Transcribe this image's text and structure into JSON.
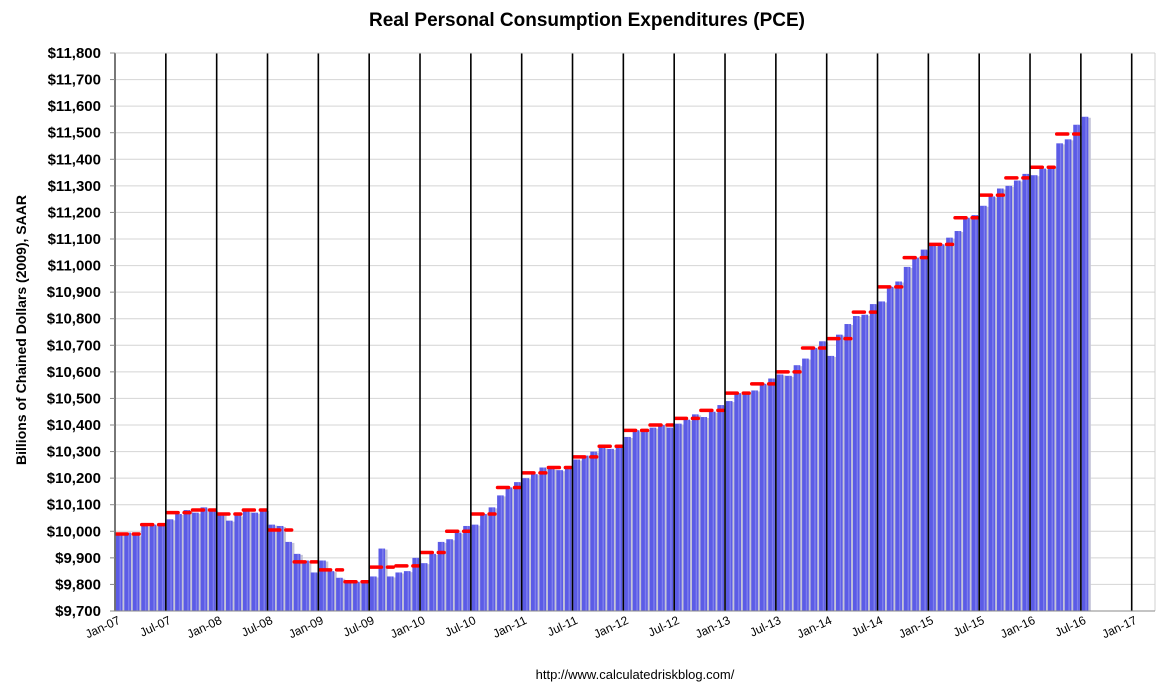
{
  "chart_data": {
    "type": "bar",
    "title": "Real Personal Consumption Expenditures (PCE)",
    "ylabel": "Billions of Chained Dollars (2009), SAAR",
    "xlabel": "",
    "ylim": [
      9700,
      11800
    ],
    "ytick_step": 100,
    "ytick_labels": [
      "$9,700",
      "$9,800",
      "$9,900",
      "$10,000",
      "$10,100",
      "$10,200",
      "$10,300",
      "$10,400",
      "$10,500",
      "$10,600",
      "$10,700",
      "$10,800",
      "$10,900",
      "$11,000",
      "$11,100",
      "$11,200",
      "$11,300",
      "$11,400",
      "$11,500",
      "$11,600",
      "$11,700",
      "$11,800"
    ],
    "xtick_labels": [
      "Jan-07",
      "Jul-07",
      "Jan-08",
      "Jul-08",
      "Jan-09",
      "Jul-09",
      "Jan-10",
      "Jul-10",
      "Jan-11",
      "Jul-11",
      "Jan-12",
      "Jul-12",
      "Jan-13",
      "Jul-13",
      "Jan-14",
      "Jul-14",
      "Jan-15",
      "Jul-15",
      "Jan-16",
      "Jul-16",
      "Jan-17"
    ],
    "grid": "vertical lines at every tick label",
    "legend": "none",
    "series": [
      {
        "kind": "monthly bars",
        "color": "#5b5be6",
        "values": [
          9990,
          9995,
          9985,
          10020,
          10025,
          10020,
          10045,
          10065,
          10080,
          10070,
          10090,
          10080,
          10070,
          10040,
          10060,
          10075,
          10070,
          10080,
          10025,
          10020,
          9960,
          9915,
          9890,
          9845,
          9890,
          9850,
          9825,
          9815,
          9810,
          9805,
          9830,
          9935,
          9830,
          9845,
          9850,
          9900,
          9880,
          9915,
          9960,
          9970,
          9995,
          10020,
          10025,
          10065,
          10090,
          10135,
          10165,
          10185,
          10200,
          10215,
          10240,
          10235,
          10230,
          10245,
          10270,
          10285,
          10300,
          10315,
          10310,
          10320,
          10355,
          10380,
          10385,
          10390,
          10400,
          10390,
          10405,
          10420,
          10440,
          10430,
          10450,
          10475,
          10490,
          10520,
          10525,
          10530,
          10555,
          10575,
          10590,
          10585,
          10625,
          10650,
          10690,
          10715,
          10660,
          10740,
          10780,
          10810,
          10815,
          10855,
          10865,
          10920,
          10940,
          10995,
          11030,
          11060,
          11075,
          11080,
          11105,
          11130,
          11180,
          11190,
          11225,
          11260,
          11290,
          11300,
          11320,
          11345,
          11340,
          11365,
          11375,
          11460,
          11475,
          11530,
          11560
        ]
      },
      {
        "kind": "quarterly average",
        "color": "#ff0000",
        "values": [
          9990,
          10025,
          10070,
          10080,
          10065,
          10080,
          10005,
          9885,
          9855,
          9810,
          9865,
          9870,
          9920,
          10000,
          10065,
          10165,
          10220,
          10240,
          10280,
          10320,
          10380,
          10400,
          10425,
          10455,
          10520,
          10555,
          10600,
          10690,
          10725,
          10825,
          10920,
          11030,
          11080,
          11180,
          11265,
          11330,
          11370,
          11495
        ]
      }
    ]
  },
  "source": "http://www.calculatedriskblog.com/"
}
